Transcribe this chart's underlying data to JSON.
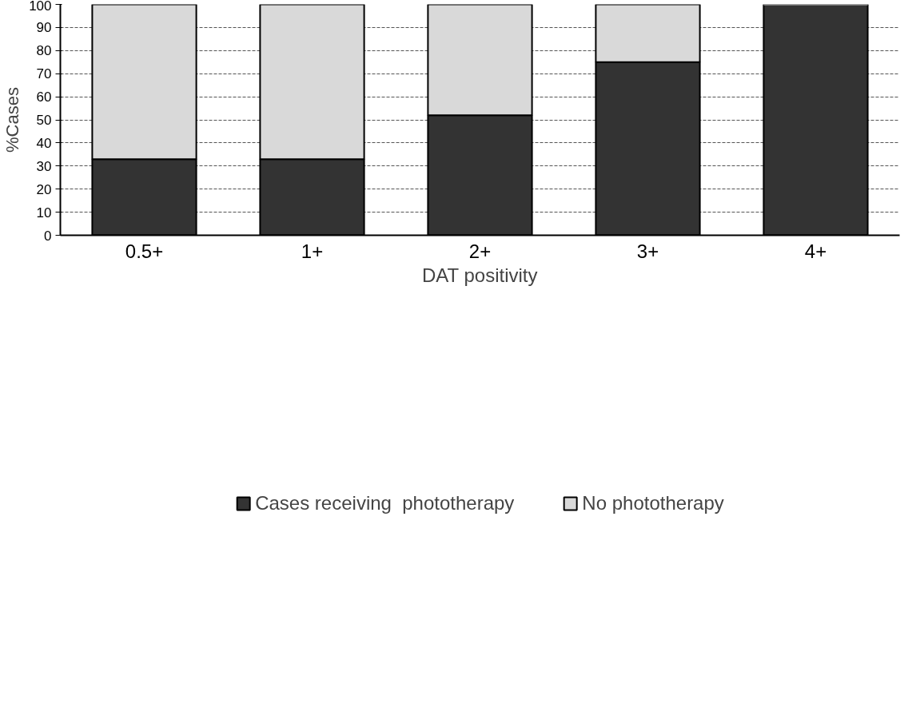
{
  "chart_data": {
    "type": "bar",
    "stacked": true,
    "xlabel": "DAT positivity",
    "ylabel": "%Cases",
    "categories": [
      "0.5+",
      "1+",
      "2+",
      "3+",
      "4+"
    ],
    "series": [
      {
        "name": "Cases receiving  phototherapy",
        "color": "#333333",
        "values": [
          33,
          33,
          52,
          75,
          100
        ]
      },
      {
        "name": "No phototherapy",
        "color": "#d9d9d9",
        "values": [
          67,
          67,
          48,
          25,
          0
        ]
      }
    ],
    "ylim": [
      0,
      100
    ],
    "yticks": [
      0,
      10,
      20,
      30,
      40,
      50,
      60,
      70,
      80,
      90,
      100
    ],
    "grid": "y",
    "legend": "bottom"
  }
}
